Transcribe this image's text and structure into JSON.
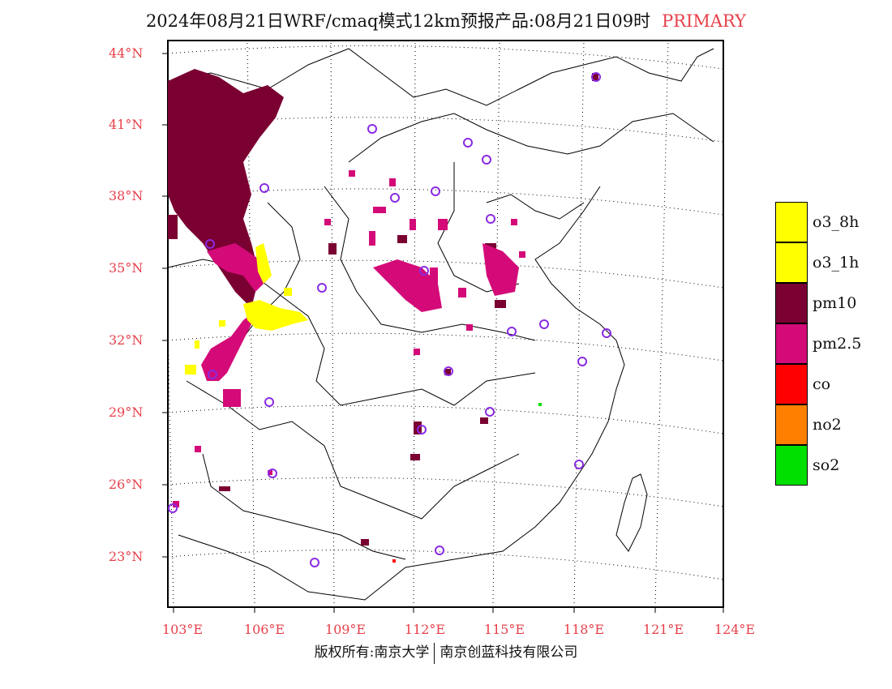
{
  "title": {
    "main": "2024年08月21日WRF/cmaq模式12km预报产品:08月21日09时",
    "tag": "PRIMARY"
  },
  "axes": {
    "lat_labels": [
      "44°N",
      "41°N",
      "38°N",
      "35°N",
      "32°N",
      "29°N",
      "26°N",
      "23°N"
    ],
    "lon_labels": [
      "103°E",
      "106°E",
      "109°E",
      "112°E",
      "115°E",
      "118°E",
      "121°E",
      "124°E"
    ]
  },
  "legend": [
    {
      "label": "o3_8h",
      "color": "#ffff00"
    },
    {
      "label": "o3_1h",
      "color": "#ffff00"
    },
    {
      "label": "pm10",
      "color": "#7a0032"
    },
    {
      "label": "pm2.5",
      "color": "#d40a78"
    },
    {
      "label": "co",
      "color": "#ff0000"
    },
    {
      "label": "no2",
      "color": "#ff8000"
    },
    {
      "label": "so2",
      "color": "#00e000"
    }
  ],
  "colors": {
    "label_red": "#e8404a",
    "station_marker": "#8a2be2"
  },
  "footer": {
    "left": "版权所有:南京大学",
    "right": "南京创蓝科技有限公司"
  }
}
